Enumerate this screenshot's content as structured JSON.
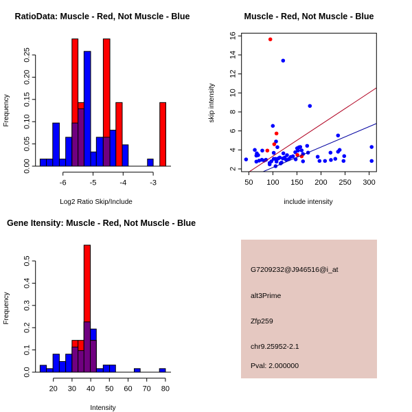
{
  "colors": {
    "red": "#ff0000",
    "blue": "#0000ff",
    "overlap": "#700080",
    "bar_border": "#000000",
    "info_bg": "#e5c8c1",
    "pval": "#a00000",
    "red_line": "#b00020",
    "blue_line": "#0000a0"
  },
  "chart_data": [
    {
      "type": "bar",
      "title": "RatioData: Muscle - Red, Not Muscle - Blue",
      "xlabel": "Log2 Ratio Skip/Include",
      "ylabel": "Frequency",
      "xticks": [
        -6,
        -5,
        -4,
        -3
      ],
      "xtick_labels": [
        "-6",
        "-5",
        "-4",
        "-3"
      ],
      "yticks": [
        0,
        0.05,
        0.1,
        0.15,
        0.2,
        0.25
      ],
      "ytick_labels": [
        "0.00",
        "0.05",
        "0.10",
        "0.15",
        "0.20",
        "0.25"
      ],
      "series": [
        {
          "name": "Not Muscle",
          "color": "blue",
          "bins": [
            [
              -6.76,
              -6.55,
              0.016
            ],
            [
              -6.55,
              -6.34,
              0.016
            ],
            [
              -6.34,
              -6.12,
              0.097
            ],
            [
              -6.12,
              -5.91,
              0.016
            ],
            [
              -5.91,
              -5.7,
              0.065
            ],
            [
              -5.7,
              -5.5,
              0.097
            ],
            [
              -5.5,
              -5.3,
              0.129
            ],
            [
              -5.3,
              -5.08,
              0.258
            ],
            [
              -5.08,
              -4.89,
              0.032
            ],
            [
              -4.89,
              -4.66,
              0.065
            ],
            [
              -4.66,
              -4.44,
              0.065
            ],
            [
              -4.44,
              -4.24,
              0.081
            ],
            [
              -4.03,
              -3.83,
              0.048
            ],
            [
              -3.19,
              -3.0,
              0.016
            ]
          ]
        },
        {
          "name": "Muscle",
          "color": "red",
          "bins": [
            [
              -5.7,
              -5.5,
              0.286
            ],
            [
              -5.5,
              -5.3,
              0.143
            ],
            [
              -4.66,
              -4.44,
              0.286
            ],
            [
              -4.24,
              -4.03,
              0.143
            ],
            [
              -2.78,
              -2.58,
              0.143
            ]
          ]
        }
      ]
    },
    {
      "type": "scatter",
      "title": "Muscle - Red, Not Muscle - Blue",
      "xlabel": "include intensity",
      "ylabel": "skip intensity",
      "xlim": [
        34.8,
        315.3
      ],
      "ylim": [
        1.71,
        16.29
      ],
      "xticks": [
        50,
        100,
        150,
        200,
        250,
        300
      ],
      "yticks": [
        2,
        4,
        6,
        8,
        10,
        12,
        14,
        16
      ],
      "series": [
        {
          "name": "Not Muscle",
          "color": "blue",
          "fit_slope": 0.0215,
          "points": [
            [
              44.3,
              3.0
            ],
            [
              62.4,
              4.0
            ],
            [
              65.7,
              3.4
            ],
            [
              66.6,
              3.64
            ],
            [
              69.5,
              3.45
            ],
            [
              65.7,
              2.77
            ],
            [
              71.4,
              2.87
            ],
            [
              78,
              3.93
            ],
            [
              77.1,
              2.96
            ],
            [
              81.8,
              2.87
            ],
            [
              85.6,
              2.96
            ],
            [
              93.3,
              2.63
            ],
            [
              93.3,
              2.48
            ],
            [
              97,
              2.8
            ],
            [
              99.9,
              6.53
            ],
            [
              101.8,
              3.69
            ],
            [
              101.8,
              3.06
            ],
            [
              105.6,
              3.06
            ],
            [
              106.6,
              4.89
            ],
            [
              107.5,
              2.77
            ],
            [
              105.6,
              2.29
            ],
            [
              109.4,
              4.29
            ],
            [
              111.3,
              3.1
            ],
            [
              114.2,
              3.2
            ],
            [
              121.3,
              13.4
            ],
            [
              116.1,
              2.58
            ],
            [
              118,
              2.67
            ],
            [
              120.8,
              3.1
            ],
            [
              121.8,
              3.64
            ],
            [
              124.6,
              3.2
            ],
            [
              127.5,
              2.96
            ],
            [
              129.4,
              3.45
            ],
            [
              133.2,
              3.04
            ],
            [
              137,
              3.25
            ],
            [
              141.7,
              3.33
            ],
            [
              146.5,
              3.76
            ],
            [
              147.4,
              3.01
            ],
            [
              150.3,
              4.17
            ],
            [
              152.2,
              3.93
            ],
            [
              154.1,
              4.27
            ],
            [
              156.9,
              4.31
            ],
            [
              159.8,
              3.95
            ],
            [
              162.6,
              3.57
            ],
            [
              162.6,
              2.8
            ],
            [
              171.2,
              4.43
            ],
            [
              173.1,
              3.71
            ],
            [
              176.9,
              8.63
            ],
            [
              193.1,
              3.28
            ],
            [
              196.9,
              2.84
            ],
            [
              208.3,
              2.84
            ],
            [
              219.7,
              3.71
            ],
            [
              220.6,
              2.94
            ],
            [
              229.7,
              3.06
            ],
            [
              235.4,
              5.52
            ],
            [
              235.4,
              3.81
            ],
            [
              238.7,
              4.0
            ],
            [
              246.8,
              2.84
            ],
            [
              248.2,
              3.35
            ],
            [
              305.2,
              4.31
            ],
            [
              305.2,
              2.84
            ]
          ]
        },
        {
          "name": "Muscle",
          "color": "red",
          "fit_slope": 0.0334,
          "points": [
            [
              94.7,
              15.64
            ],
            [
              107.5,
              5.73
            ],
            [
              102.8,
              4.6
            ],
            [
              88.5,
              3.93
            ],
            [
              151,
              3.47
            ],
            [
              159.8,
              3.33
            ]
          ]
        }
      ]
    },
    {
      "type": "bar",
      "title": "Gene Itensity: Muscle - Red, Not Muscle - Blue",
      "xlabel": "Intensity",
      "ylabel": "Frequency",
      "xticks": [
        20,
        30,
        40,
        50,
        60,
        70,
        80
      ],
      "yticks": [
        0,
        0.1,
        0.2,
        0.3,
        0.4,
        0.5
      ],
      "ytick_labels": [
        "0.0",
        "0.1",
        "0.2",
        "0.3",
        "0.4",
        "0.5"
      ],
      "series": [
        {
          "name": "Not Muscle",
          "color": "blue",
          "bins": [
            [
              12.9,
              16.3,
              0.031
            ],
            [
              16.3,
              19.8,
              0.016
            ],
            [
              19.8,
              23.2,
              0.081
            ],
            [
              23.2,
              26.6,
              0.048
            ],
            [
              26.6,
              30.0,
              0.081
            ],
            [
              30.0,
              33.2,
              0.113
            ],
            [
              33.2,
              36.4,
              0.097
            ],
            [
              36.4,
              39.8,
              0.226
            ],
            [
              39.8,
              43.0,
              0.194
            ],
            [
              43.0,
              46.7,
              0.016
            ],
            [
              46.7,
              50.1,
              0.032
            ],
            [
              50.1,
              53.3,
              0.032
            ],
            [
              63.3,
              66.5,
              0.016
            ],
            [
              76.8,
              80.0,
              0.016
            ]
          ]
        },
        {
          "name": "Muscle",
          "color": "red",
          "bins": [
            [
              30.0,
              33.2,
              0.143
            ],
            [
              33.2,
              36.4,
              0.143
            ],
            [
              36.4,
              39.8,
              0.571
            ],
            [
              39.8,
              43.0,
              0.143
            ]
          ]
        }
      ]
    }
  ],
  "info": {
    "probe_id": "G7209232@J946516@i_at",
    "event_type": "alt3Prime",
    "gene": "Zfp259",
    "location": "chr9.25952-2.1",
    "pval": "Pval: 2.000000"
  }
}
